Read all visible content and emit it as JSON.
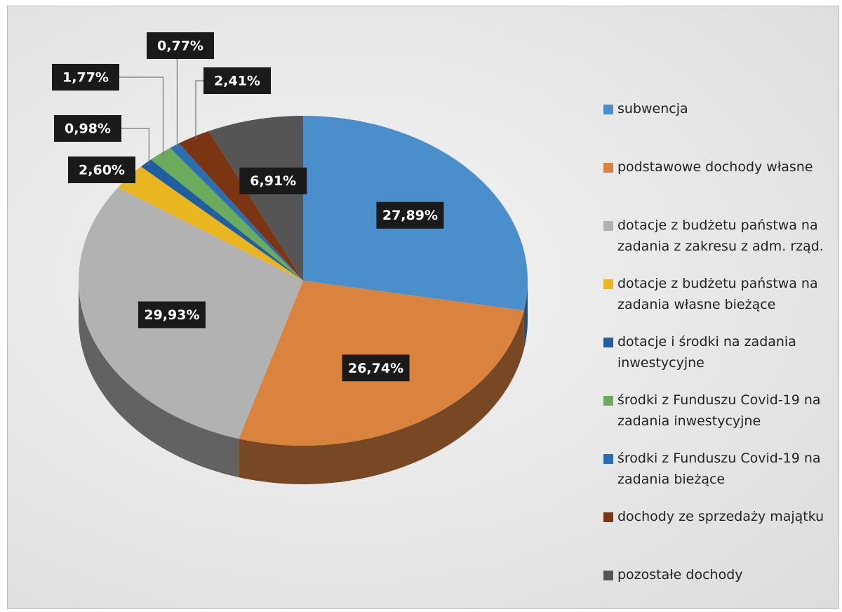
{
  "chart_data": {
    "type": "pie",
    "categories": [
      "subwencja",
      "podstawowe dochody własne",
      "dotacje z budżetu państwa na zadania z zakresu z adm. rząd.",
      "dotacje z budżetu państwa na zadania własne bieżące",
      "dotacje i środki na zadania inwestycyjne",
      "środki z Funduszu Covid-19 na zadania inwestycyjne",
      "środki z Funduszu Covid-19 na zadania bieżące",
      "dochody ze sprzedaży majątku",
      "pozostałe dochody"
    ],
    "values": [
      27.89,
      26.74,
      29.93,
      2.6,
      0.98,
      1.77,
      0.77,
      2.41,
      6.91
    ],
    "value_labels": [
      "27,89%",
      "26,74%",
      "29,93%",
      "2,60%",
      "0,98%",
      "1,77%",
      "0,77%",
      "2,41%",
      "6,91%"
    ],
    "colors": [
      "#4a8fcb",
      "#d9833f",
      "#b2b2b2",
      "#e9b620",
      "#1f5e9f",
      "#6aab5c",
      "#2b6fb2",
      "#7b3512",
      "#555555"
    ],
    "legend": "right"
  }
}
